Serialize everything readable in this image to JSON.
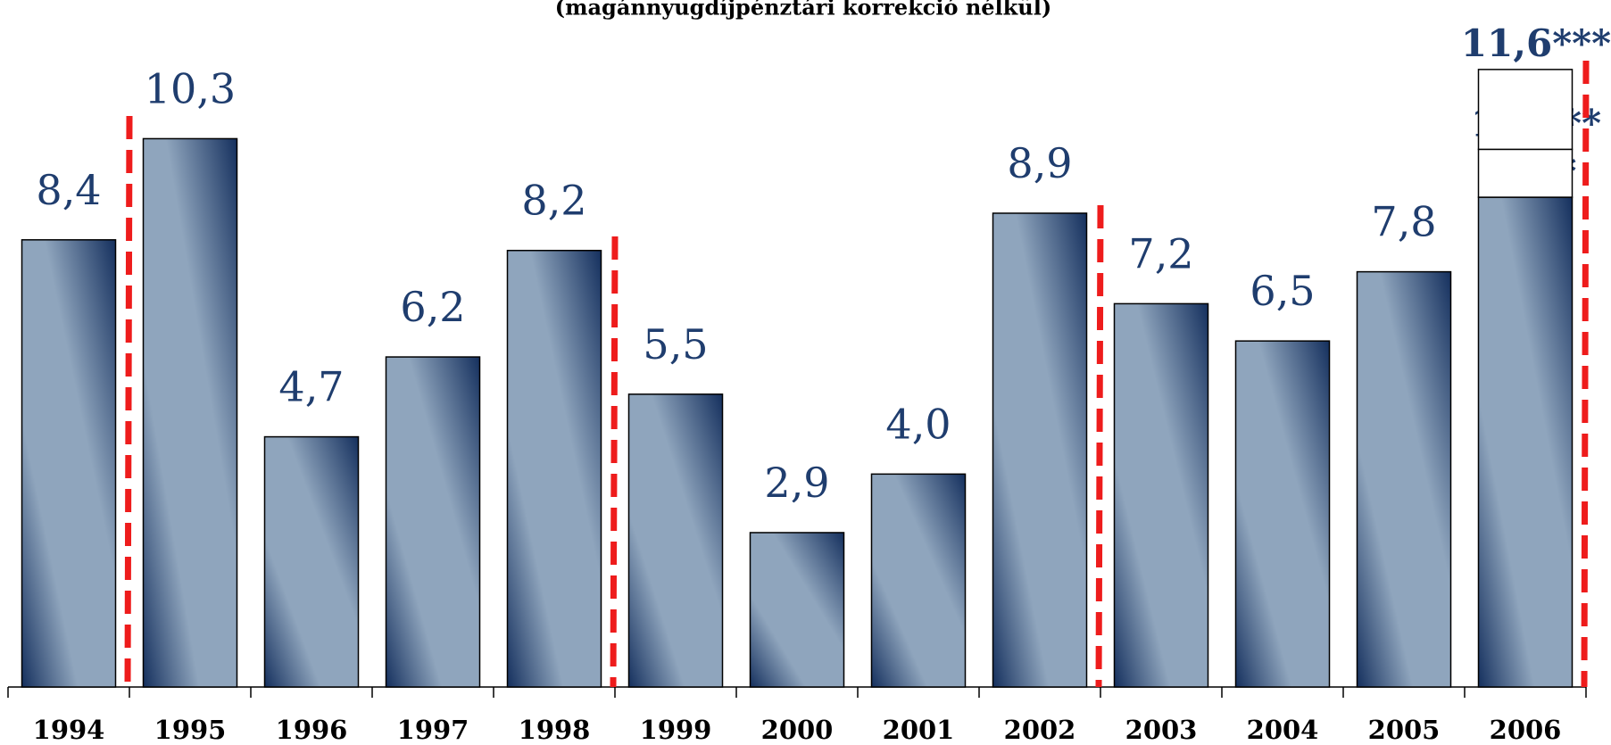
{
  "chart_data": {
    "type": "bar",
    "title": "(magánnyugdíjpénztári korrekció nélkül)",
    "categories": [
      "1994",
      "1995",
      "1996",
      "1997",
      "1998",
      "1999",
      "2000",
      "2001",
      "2002",
      "2003",
      "2004",
      "2005",
      "2006"
    ],
    "values": [
      8.4,
      10.3,
      4.7,
      6.2,
      8.2,
      5.5,
      2.9,
      4.0,
      8.9,
      7.2,
      6.5,
      7.8,
      9.2
    ],
    "value_labels": [
      "8,4",
      "10,3",
      "4,7",
      "6,2",
      "8,2",
      "5,5",
      "2,9",
      "4,0",
      "8,9",
      "7,2",
      "6,5",
      "7,8",
      "9,2*"
    ],
    "alternatives": [
      {
        "value": 10.1,
        "label": "10,1**"
      },
      {
        "value": 11.6,
        "label": "11,6***"
      }
    ],
    "color": "#8fa5bd",
    "ylim": [
      0,
      12
    ]
  }
}
